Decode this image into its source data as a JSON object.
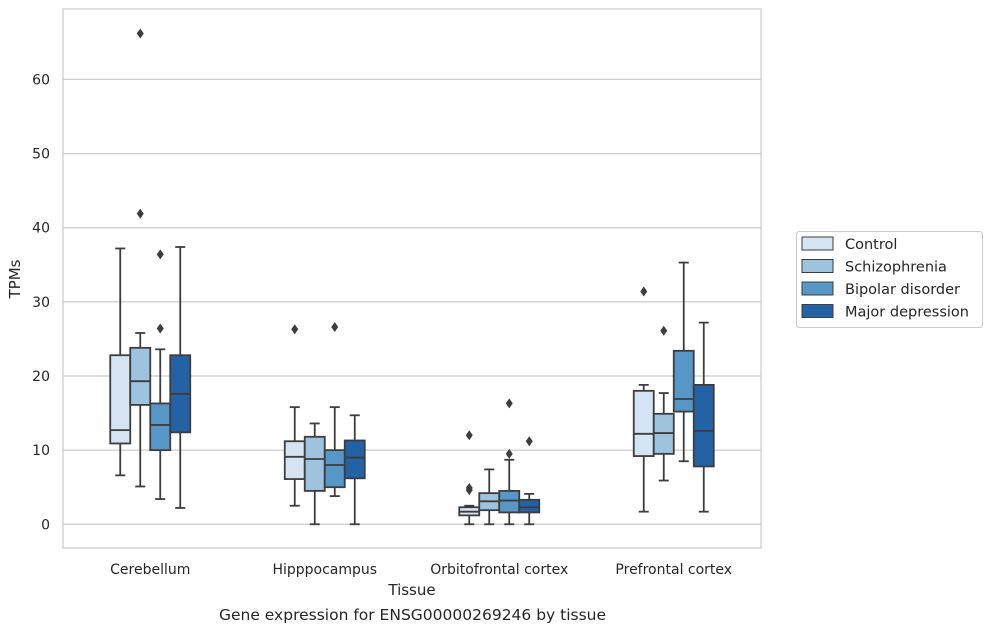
{
  "caption": "Gene expression for ENSG00000269246 by tissue",
  "chart_data": {
    "type": "box",
    "xlabel": "Tissue",
    "ylabel": "TPMs",
    "ylim": [
      -3.2,
      69.5
    ],
    "yticks": [
      0,
      10,
      20,
      30,
      40,
      50,
      60
    ],
    "grid": "horizontal",
    "legend_position": "right",
    "categories": [
      "Cerebellum",
      "Hipppocampus",
      "Orbitofrontal cortex",
      "Prefrontal cortex"
    ],
    "series": [
      {
        "name": "Control",
        "color": "#d5e4f2",
        "boxes": [
          {
            "whislo": 6.6,
            "q1": 10.9,
            "med": 12.7,
            "q3": 22.8,
            "whishi": 37.2,
            "fliers": []
          },
          {
            "whislo": 2.5,
            "q1": 6.1,
            "med": 9.1,
            "q3": 11.2,
            "whishi": 15.8,
            "fliers": [
              26.3
            ]
          },
          {
            "whislo": 0.0,
            "q1": 1.2,
            "med": 1.7,
            "q3": 2.3,
            "whishi": 2.5,
            "fliers": [
              4.6,
              4.9,
              12.0
            ]
          },
          {
            "whislo": 1.7,
            "q1": 9.2,
            "med": 12.2,
            "q3": 18.0,
            "whishi": 18.8,
            "fliers": [
              31.4
            ]
          }
        ]
      },
      {
        "name": "Schizophrenia",
        "color": "#9dc3de",
        "boxes": [
          {
            "whislo": 5.1,
            "q1": 16.1,
            "med": 19.3,
            "q3": 23.8,
            "whishi": 25.8,
            "fliers": [
              41.9,
              66.2
            ]
          },
          {
            "whislo": 0.0,
            "q1": 4.5,
            "med": 8.8,
            "q3": 11.8,
            "whishi": 13.6,
            "fliers": []
          },
          {
            "whislo": 0.0,
            "q1": 1.9,
            "med": 3.1,
            "q3": 4.2,
            "whishi": 7.4,
            "fliers": []
          },
          {
            "whislo": 5.9,
            "q1": 9.5,
            "med": 12.3,
            "q3": 14.9,
            "whishi": 17.7,
            "fliers": [
              26.1
            ]
          }
        ]
      },
      {
        "name": "Bipolar disorder",
        "color": "#5797c8",
        "boxes": [
          {
            "whislo": 3.4,
            "q1": 10.0,
            "med": 13.4,
            "q3": 16.3,
            "whishi": 23.6,
            "fliers": [
              26.4,
              36.4
            ]
          },
          {
            "whislo": 3.8,
            "q1": 5.0,
            "med": 8.0,
            "q3": 10.0,
            "whishi": 15.8,
            "fliers": [
              26.6
            ]
          },
          {
            "whislo": 0.0,
            "q1": 1.6,
            "med": 3.2,
            "q3": 4.5,
            "whishi": 8.7,
            "fliers": [
              9.5,
              16.3
            ]
          },
          {
            "whislo": 8.5,
            "q1": 15.2,
            "med": 16.9,
            "q3": 23.4,
            "whishi": 35.3,
            "fliers": []
          }
        ]
      },
      {
        "name": "Major depression",
        "color": "#2462a6",
        "boxes": [
          {
            "whislo": 2.2,
            "q1": 12.4,
            "med": 17.6,
            "q3": 22.8,
            "whishi": 37.4,
            "fliers": []
          },
          {
            "whislo": 0.0,
            "q1": 6.2,
            "med": 9.0,
            "q3": 11.3,
            "whishi": 14.7,
            "fliers": []
          },
          {
            "whislo": 0.0,
            "q1": 1.6,
            "med": 2.3,
            "q3": 3.3,
            "whishi": 4.1,
            "fliers": [
              11.2
            ]
          },
          {
            "whislo": 1.7,
            "q1": 7.8,
            "med": 12.6,
            "q3": 18.8,
            "whishi": 27.2,
            "fliers": []
          }
        ]
      }
    ]
  }
}
